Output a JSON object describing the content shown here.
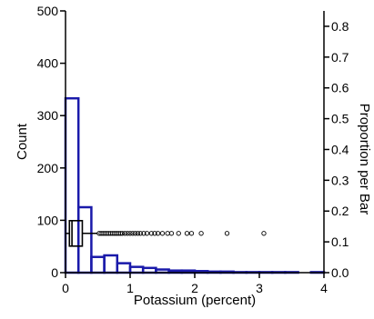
{
  "chart_data": {
    "type": "bar",
    "subtype": "histogram with box plot overlay",
    "xlabel": "Potassium (percent)",
    "ylabel": "Count",
    "y2label": "Proportion per Bar",
    "xlim": [
      0,
      4
    ],
    "ylim": [
      0,
      500
    ],
    "y2lim": [
      0,
      0.85
    ],
    "x_ticks": [
      "0",
      "1",
      "2",
      "3",
      "4"
    ],
    "y_ticks": [
      "0",
      "100",
      "200",
      "300",
      "400",
      "500"
    ],
    "y2_ticks": [
      "0.0",
      "0.1",
      "0.2",
      "0.3",
      "0.4",
      "0.5",
      "0.6",
      "0.7",
      "0.8"
    ],
    "grid": false,
    "bar_color": "#1a1aaa",
    "bins": [
      {
        "x0": 0.0,
        "x1": 0.2,
        "count": 333
      },
      {
        "x0": 0.2,
        "x1": 0.4,
        "count": 125
      },
      {
        "x0": 0.4,
        "x1": 0.6,
        "count": 30
      },
      {
        "x0": 0.6,
        "x1": 0.8,
        "count": 33
      },
      {
        "x0": 0.8,
        "x1": 1.0,
        "count": 18
      },
      {
        "x0": 1.0,
        "x1": 1.2,
        "count": 11
      },
      {
        "x0": 1.2,
        "x1": 1.4,
        "count": 9
      },
      {
        "x0": 1.4,
        "x1": 1.6,
        "count": 6
      },
      {
        "x0": 1.6,
        "x1": 1.8,
        "count": 4
      },
      {
        "x0": 1.8,
        "x1": 2.0,
        "count": 4
      },
      {
        "x0": 2.0,
        "x1": 2.2,
        "count": 3
      },
      {
        "x0": 2.2,
        "x1": 2.4,
        "count": 2
      },
      {
        "x0": 2.4,
        "x1": 2.6,
        "count": 2
      },
      {
        "x0": 2.6,
        "x1": 2.8,
        "count": 1
      },
      {
        "x0": 2.8,
        "x1": 3.0,
        "count": 1
      },
      {
        "x0": 3.0,
        "x1": 3.2,
        "count": 1
      },
      {
        "x0": 3.2,
        "x1": 3.4,
        "count": 1
      },
      {
        "x0": 3.4,
        "x1": 3.6,
        "count": 1
      },
      {
        "x0": 3.6,
        "x1": 3.8,
        "count": 0
      },
      {
        "x0": 3.8,
        "x1": 4.0,
        "count": 1
      }
    ],
    "boxplot": {
      "count_level": 75,
      "q1": 0.06,
      "median": 0.1,
      "q3": 0.26,
      "whisker_low": 0.0,
      "whisker_high": 0.5,
      "outliers": [
        0.52,
        0.55,
        0.58,
        0.61,
        0.64,
        0.67,
        0.7,
        0.73,
        0.76,
        0.79,
        0.82,
        0.85,
        0.88,
        0.92,
        0.96,
        1.0,
        1.04,
        1.08,
        1.12,
        1.16,
        1.21,
        1.26,
        1.33,
        1.38,
        1.43,
        1.5,
        1.58,
        1.64,
        1.75,
        1.88,
        1.95,
        2.1,
        2.5,
        3.07
      ]
    }
  }
}
